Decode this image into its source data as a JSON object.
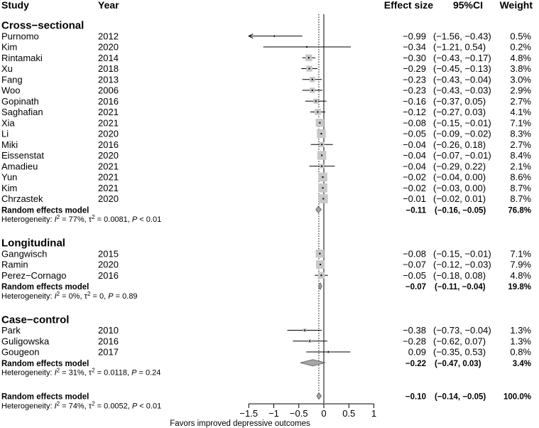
{
  "headers": {
    "study": "Study",
    "year": "Year",
    "effect": "Effect size",
    "ci": "95%CI",
    "weight": "Weight"
  },
  "x_axis_label": "Favors improved depressive outcomes",
  "rows": [
    {
      "kind": "group",
      "label": "Cross−sectional"
    },
    {
      "kind": "study",
      "study": "Purnomo",
      "year": "2012",
      "effect": -0.99,
      "lo": -1.56,
      "hi": -0.43,
      "effect_text": "−0.99",
      "ci_text": "(−1.56, −0.43)",
      "weight_text": "0.5%",
      "weight": 0.5,
      "arrow_left": true
    },
    {
      "kind": "study",
      "study": "Kim",
      "year": "2020",
      "effect": -0.34,
      "lo": -1.21,
      "hi": 0.54,
      "effect_text": "−0.34",
      "ci_text": "(−1.21, 0.54)",
      "weight_text": "0.2%",
      "weight": 0.2
    },
    {
      "kind": "study",
      "study": "Rintamaki",
      "year": "2014",
      "effect": -0.3,
      "lo": -0.43,
      "hi": -0.17,
      "effect_text": "−0.30",
      "ci_text": "(−0.43, −0.17)",
      "weight_text": "4.8%",
      "weight": 4.8
    },
    {
      "kind": "study",
      "study": "Xu",
      "year": "2018",
      "effect": -0.29,
      "lo": -0.45,
      "hi": -0.13,
      "effect_text": "−0.29",
      "ci_text": "(−0.45, −0.13)",
      "weight_text": "3.8%",
      "weight": 3.8
    },
    {
      "kind": "study",
      "study": "Fang",
      "year": "2013",
      "effect": -0.23,
      "lo": -0.43,
      "hi": -0.04,
      "effect_text": "−0.23",
      "ci_text": "(−0.43, −0.04)",
      "weight_text": "3.0%",
      "weight": 3.0
    },
    {
      "kind": "study",
      "study": "Woo",
      "year": "2006",
      "effect": -0.23,
      "lo": -0.43,
      "hi": -0.03,
      "effect_text": "−0.23",
      "ci_text": "(−0.43, −0.03)",
      "weight_text": "2.9%",
      "weight": 2.9
    },
    {
      "kind": "study",
      "study": "Gopinath",
      "year": "2016",
      "effect": -0.16,
      "lo": -0.37,
      "hi": 0.05,
      "effect_text": "−0.16",
      "ci_text": "(−0.37, 0.05)",
      "weight_text": "2.7%",
      "weight": 2.7
    },
    {
      "kind": "study",
      "study": "Saghafian",
      "year": "2021",
      "effect": -0.12,
      "lo": -0.27,
      "hi": 0.03,
      "effect_text": "−0.12",
      "ci_text": "(−0.27, 0.03)",
      "weight_text": "4.1%",
      "weight": 4.1
    },
    {
      "kind": "study",
      "study": "Xia",
      "year": "2021",
      "effect": -0.08,
      "lo": -0.15,
      "hi": -0.01,
      "effect_text": "−0.08",
      "ci_text": "(−0.15, −0.01)",
      "weight_text": "7.1%",
      "weight": 7.1
    },
    {
      "kind": "study",
      "study": "Li",
      "year": "2020",
      "effect": -0.05,
      "lo": -0.09,
      "hi": -0.02,
      "effect_text": "−0.05",
      "ci_text": "(−0.09, −0.02)",
      "weight_text": "8.3%",
      "weight": 8.3
    },
    {
      "kind": "study",
      "study": "Miki",
      "year": "2016",
      "effect": -0.04,
      "lo": -0.26,
      "hi": 0.18,
      "effect_text": "−0.04",
      "ci_text": "(−0.26, 0.18)",
      "weight_text": "2.7%",
      "weight": 2.7
    },
    {
      "kind": "study",
      "study": "Eissenstat",
      "year": "2020",
      "effect": -0.04,
      "lo": -0.07,
      "hi": -0.01,
      "effect_text": "−0.04",
      "ci_text": "(−0.07, −0.01)",
      "weight_text": "8.4%",
      "weight": 8.4
    },
    {
      "kind": "study",
      "study": "Amadieu",
      "year": "2021",
      "effect": -0.04,
      "lo": -0.29,
      "hi": 0.22,
      "effect_text": "−0.04",
      "ci_text": "(−0.29, 0.22)",
      "weight_text": "2.1%",
      "weight": 2.1
    },
    {
      "kind": "study",
      "study": "Yun",
      "year": "2021",
      "effect": -0.02,
      "lo": -0.04,
      "hi": 0.0,
      "effect_text": "−0.02",
      "ci_text": "(−0.04, 0.00)",
      "weight_text": "8.6%",
      "weight": 8.6
    },
    {
      "kind": "study",
      "study": "Kim",
      "year": "2021",
      "effect": -0.02,
      "lo": -0.03,
      "hi": 0.0,
      "effect_text": "−0.02",
      "ci_text": "(−0.03, 0.00)",
      "weight_text": "8.7%",
      "weight": 8.7
    },
    {
      "kind": "study",
      "study": "Chrzastek",
      "year": "2020",
      "effect": -0.01,
      "lo": -0.02,
      "hi": 0.01,
      "effect_text": "−0.01",
      "ci_text": "(−0.02, 0.01)",
      "weight_text": "8.7%",
      "weight": 8.7
    },
    {
      "kind": "summary",
      "label": "Random effects model",
      "effect": -0.11,
      "lo": -0.16,
      "hi": -0.05,
      "effect_text": "−0.11",
      "ci_text": "(−0.16, −0.05)",
      "weight_text": "76.8%"
    },
    {
      "kind": "het",
      "prefix": "Heterogeneity: ",
      "i_letter": "I",
      "i_sup": "2",
      "i_value": " = 77%, ",
      "tau_letter": "τ",
      "tau_sup": "2",
      "tau_value": " = 0.0081, ",
      "p_letter": "P",
      "p_value": " < 0.01"
    },
    {
      "kind": "gap"
    },
    {
      "kind": "group",
      "label": "Longitudinal"
    },
    {
      "kind": "study",
      "study": "Gangwisch",
      "year": "2015",
      "effect": -0.08,
      "lo": -0.15,
      "hi": -0.01,
      "effect_text": "−0.08",
      "ci_text": "(−0.15, −0.01)",
      "weight_text": "7.1%",
      "weight": 7.1
    },
    {
      "kind": "study",
      "study": "Ramin",
      "year": "2020",
      "effect": -0.07,
      "lo": -0.12,
      "hi": -0.03,
      "effect_text": "−0.07",
      "ci_text": "(−0.12, −0.03)",
      "weight_text": "7.9%",
      "weight": 7.9
    },
    {
      "kind": "study",
      "study": "Perez−Cornago",
      "year": "2016",
      "effect": -0.05,
      "lo": -0.18,
      "hi": 0.08,
      "effect_text": "−0.05",
      "ci_text": "(−0.18, 0.08)",
      "weight_text": "4.8%",
      "weight": 4.8
    },
    {
      "kind": "summary",
      "label": "Random effects model",
      "effect": -0.07,
      "lo": -0.11,
      "hi": -0.04,
      "effect_text": "−0.07",
      "ci_text": "(−0.11, −0.04)",
      "weight_text": "19.8%"
    },
    {
      "kind": "het",
      "prefix": "Heterogeneity: ",
      "i_letter": "I",
      "i_sup": "2",
      "i_value": " = 0%, ",
      "tau_letter": "τ",
      "tau_sup": "2",
      "tau_value": " = 0, ",
      "p_letter": "P",
      "p_value": " = 0.89"
    },
    {
      "kind": "gap"
    },
    {
      "kind": "group",
      "label": "Case−control"
    },
    {
      "kind": "study",
      "study": "Park",
      "year": "2010",
      "effect": -0.38,
      "lo": -0.73,
      "hi": -0.04,
      "effect_text": "−0.38",
      "ci_text": "(−0.73, −0.04)",
      "weight_text": "1.3%",
      "weight": 1.3
    },
    {
      "kind": "study",
      "study": "Guligowska",
      "year": "2016",
      "effect": -0.28,
      "lo": -0.62,
      "hi": 0.07,
      "effect_text": "−0.28",
      "ci_text": "(−0.62, 0.07)",
      "weight_text": "1.3%",
      "weight": 1.3
    },
    {
      "kind": "study",
      "study": "Gougeon",
      "year": "2017",
      "effect": 0.09,
      "lo": -0.35,
      "hi": 0.53,
      "effect_text": "0.09",
      "ci_text": "(−0.35, 0.53)",
      "weight_text": "0.8%",
      "weight": 0.8
    },
    {
      "kind": "summary",
      "label": "Random effects model",
      "effect": -0.22,
      "lo": -0.47,
      "hi": 0.03,
      "effect_text": "−0.22",
      "ci_text": "(−0.47, 0.03)",
      "weight_text": "3.4%"
    },
    {
      "kind": "het",
      "prefix": "Heterogeneity: ",
      "i_letter": "I",
      "i_sup": "2",
      "i_value": " = 31%, ",
      "tau_letter": "τ",
      "tau_sup": "2",
      "tau_value": " = 0.0118, ",
      "p_letter": "P",
      "p_value": " = 0.24"
    },
    {
      "kind": "gap"
    },
    {
      "kind": "summary",
      "label": "Random effects model",
      "effect": -0.1,
      "lo": -0.14,
      "hi": -0.05,
      "effect_text": "−0.10",
      "ci_text": "(−0.14, −0.05)",
      "weight_text": "100.0%"
    },
    {
      "kind": "het",
      "prefix": "Heterogeneity: ",
      "i_letter": "I",
      "i_sup": "2",
      "i_value": " = 74%, ",
      "tau_letter": "τ",
      "tau_sup": "2",
      "tau_value": " = 0.0052, ",
      "p_letter": "P",
      "p_value": " < 0.01"
    }
  ],
  "chart_data": {
    "type": "scatter",
    "subtype": "forest",
    "xlabel": "Favors improved depressive outcomes",
    "xlim": [
      -1.5,
      1
    ],
    "xticks": [
      -1.5,
      -1,
      -0.5,
      0,
      0.5,
      1
    ],
    "xtick_labels": [
      "−1.5",
      "−1",
      "−0.5",
      "0",
      "0.5",
      "1"
    ],
    "reference_line": 0,
    "overall_effect_line": -0.1,
    "colors": {
      "square": "#c8c8c8",
      "diamond": "#a6a6a6",
      "line": "#000000"
    }
  }
}
